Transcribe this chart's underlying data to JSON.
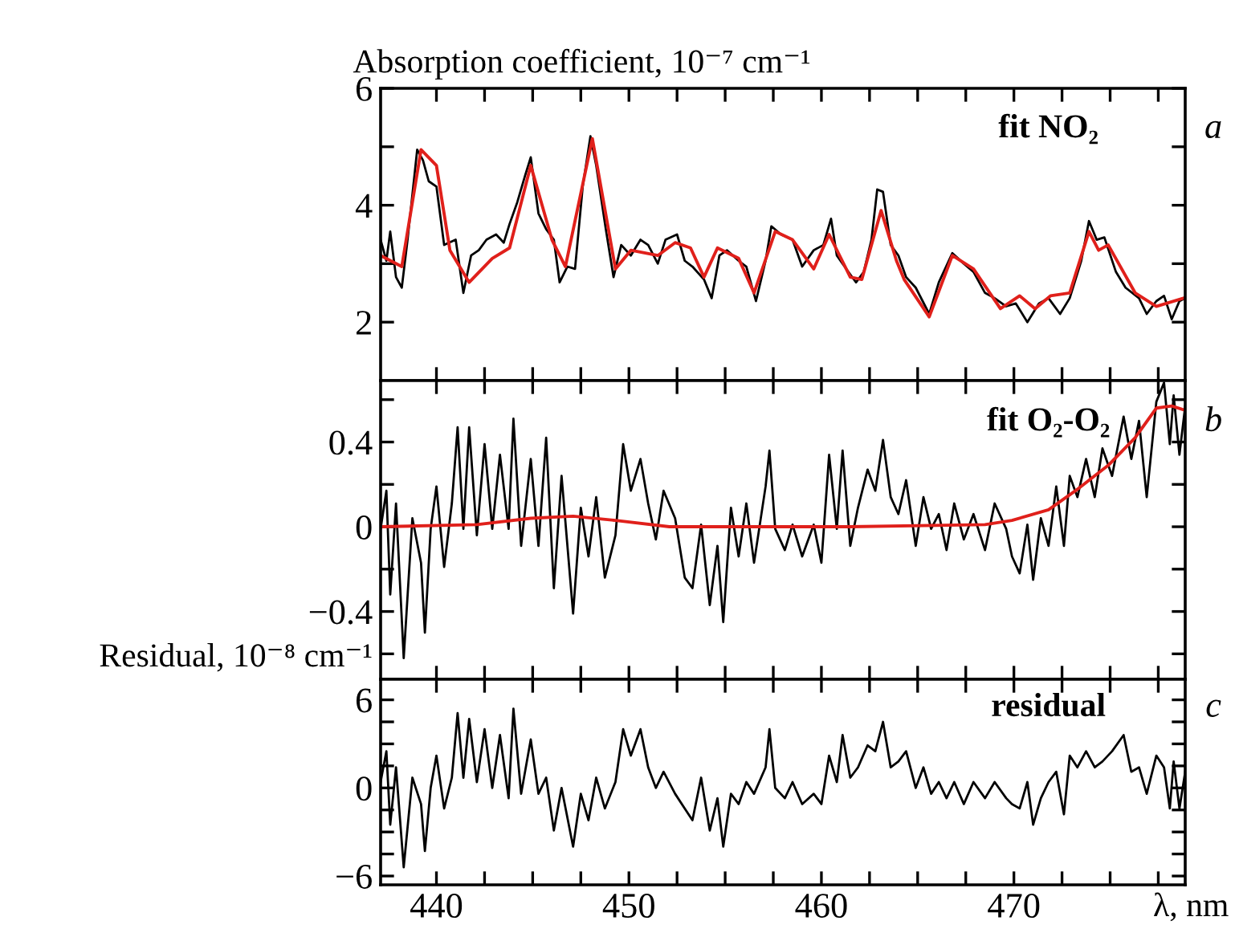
{
  "chart_data": [
    {
      "type": "line",
      "ylabel": "Absorption coefficient, 10⁻⁷ cm⁻¹",
      "annotations": [
        "fit NO₂",
        "a"
      ],
      "tick_labels": "y",
      "xlim": [
        437.1,
        478.9
      ],
      "xticks": [
        {
          "value": 440,
          "label": null
        },
        {
          "value": 442.5,
          "label": null
        },
        {
          "value": 445,
          "label": null
        },
        {
          "value": 447.5,
          "label": null
        },
        {
          "value": 450,
          "label": null
        },
        {
          "value": 452.5,
          "label": null
        },
        {
          "value": 455,
          "label": null
        },
        {
          "value": 457.5,
          "label": null
        },
        {
          "value": 460,
          "label": null
        },
        {
          "value": 462.5,
          "label": null
        },
        {
          "value": 465,
          "label": null
        },
        {
          "value": 467.5,
          "label": null
        },
        {
          "value": 470,
          "label": null
        },
        {
          "value": 472.5,
          "label": null
        },
        {
          "value": 475,
          "label": null
        },
        {
          "value": 477.5,
          "label": null
        }
      ],
      "ylim": [
        1.0,
        6.0
      ],
      "yticks": [
        2,
        {
          "value": 3,
          "label": null
        },
        4,
        {
          "value": 5,
          "label": null
        },
        6
      ],
      "series": [
        {
          "color": "#000000",
          "x": [
            437.1,
            437.4,
            437.6,
            437.9,
            438.2,
            438.5,
            439.0,
            439.3,
            439.6,
            440.0,
            440.4,
            441.0,
            441.4,
            441.8,
            442.2,
            442.6,
            443.1,
            443.5,
            443.8,
            444.2,
            444.6,
            444.9,
            445.3,
            445.7,
            446.1,
            446.4,
            446.8,
            447.2,
            447.6,
            448.0,
            448.3,
            448.8,
            449.2,
            449.6,
            450.1,
            450.6,
            451.0,
            451.5,
            451.9,
            452.5,
            452.9,
            453.3,
            453.9,
            454.3,
            454.7,
            455.1,
            455.7,
            456.1,
            456.6,
            457.1,
            457.4,
            457.9,
            458.5,
            459.0,
            459.6,
            460.1,
            460.5,
            460.8,
            461.4,
            461.8,
            462.2,
            462.6,
            462.9,
            463.2,
            463.6,
            464.0,
            464.4,
            464.9,
            465.6,
            466.1,
            466.8,
            467.4,
            467.9,
            468.5,
            469.0,
            469.6,
            470.1,
            470.7,
            471.3,
            471.8,
            472.4,
            472.9,
            473.5,
            473.9,
            474.3,
            474.7,
            475.3,
            475.8,
            476.5,
            476.9,
            477.4,
            477.8,
            478.2,
            478.6,
            478.9
          ],
          "values": [
            3.41,
            3.05,
            3.55,
            2.77,
            2.59,
            3.41,
            4.95,
            4.77,
            4.41,
            4.32,
            3.32,
            3.41,
            2.5,
            3.14,
            3.23,
            3.41,
            3.5,
            3.36,
            3.68,
            4.05,
            4.5,
            4.82,
            3.86,
            3.59,
            3.41,
            2.68,
            2.95,
            2.91,
            4.32,
            5.18,
            4.68,
            3.59,
            2.77,
            3.32,
            3.14,
            3.41,
            3.32,
            3.0,
            3.41,
            3.5,
            3.05,
            2.95,
            2.73,
            2.41,
            3.14,
            3.23,
            3.05,
            2.95,
            2.36,
            3.05,
            3.64,
            3.5,
            3.41,
            2.95,
            3.23,
            3.32,
            3.77,
            3.14,
            2.86,
            2.68,
            2.86,
            3.41,
            4.27,
            4.23,
            3.32,
            3.14,
            2.77,
            2.59,
            2.14,
            2.68,
            3.18,
            3.0,
            2.86,
            2.5,
            2.41,
            2.27,
            2.32,
            2.0,
            2.32,
            2.41,
            2.14,
            2.41,
            3.05,
            3.73,
            3.41,
            3.45,
            2.86,
            2.59,
            2.41,
            2.14,
            2.36,
            2.45,
            2.05,
            2.36,
            2.41
          ]
        },
        {
          "color": "#e0201b",
          "x": [
            437.1,
            438.2,
            439.2,
            440.0,
            440.7,
            441.7,
            442.9,
            443.8,
            444.9,
            446.0,
            446.7,
            448.1,
            449.3,
            450.1,
            451.5,
            452.4,
            453.2,
            453.9,
            454.6,
            455.7,
            456.5,
            457.6,
            458.5,
            459.6,
            460.4,
            461.5,
            462.1,
            463.1,
            463.9,
            464.3,
            465.6,
            466.8,
            467.9,
            469.3,
            470.3,
            471.1,
            471.9,
            472.9,
            473.9,
            474.4,
            474.9,
            476.3,
            477.4,
            478.8
          ],
          "values": [
            3.14,
            2.95,
            4.95,
            4.68,
            3.23,
            2.68,
            3.09,
            3.27,
            4.68,
            3.41,
            2.95,
            5.14,
            2.91,
            3.23,
            3.14,
            3.36,
            3.27,
            2.77,
            3.27,
            3.09,
            2.5,
            3.55,
            3.41,
            2.91,
            3.5,
            2.77,
            2.73,
            3.91,
            3.05,
            2.73,
            2.09,
            3.14,
            2.91,
            2.23,
            2.45,
            2.23,
            2.45,
            2.5,
            3.55,
            3.23,
            3.32,
            2.5,
            2.27,
            2.41
          ]
        }
      ]
    },
    {
      "type": "line",
      "ylabel": "Residual, 10⁻⁸ cm⁻¹",
      "annotations": [
        "fit O₂-O₂",
        "b"
      ],
      "tick_labels": "y",
      "xlim": [
        437.1,
        478.9
      ],
      "xticks": [
        {
          "value": 440,
          "label": null
        },
        {
          "value": 442.5,
          "label": null
        },
        {
          "value": 445,
          "label": null
        },
        {
          "value": 447.5,
          "label": null
        },
        {
          "value": 450,
          "label": null
        },
        {
          "value": 452.5,
          "label": null
        },
        {
          "value": 455,
          "label": null
        },
        {
          "value": 457.5,
          "label": null
        },
        {
          "value": 460,
          "label": null
        },
        {
          "value": 462.5,
          "label": null
        },
        {
          "value": 465,
          "label": null
        },
        {
          "value": 467.5,
          "label": null
        },
        {
          "value": 470,
          "label": null
        },
        {
          "value": 472.5,
          "label": null
        },
        {
          "value": 475,
          "label": null
        },
        {
          "value": 477.5,
          "label": null
        }
      ],
      "ylim": [
        -0.72,
        0.69
      ],
      "yticks": [
        {
          "value": -0.6,
          "label": null
        },
        {
          "value": -0.4,
          "label": "−0.4"
        },
        {
          "value": -0.2,
          "label": null
        },
        0,
        {
          "value": 0.2,
          "label": null
        },
        0.4,
        {
          "value": 0.6,
          "label": null
        }
      ],
      "series": [
        {
          "color": "#000000",
          "x": [
            437.1,
            437.4,
            437.6,
            437.9,
            438.3,
            438.75,
            439.2,
            439.4,
            439.7,
            440.0,
            440.4,
            440.8,
            441.1,
            441.4,
            441.7,
            442.1,
            442.5,
            442.9,
            443.3,
            443.75,
            444.0,
            444.4,
            444.9,
            445.3,
            445.7,
            446.1,
            446.5,
            447.1,
            447.5,
            447.9,
            448.3,
            448.75,
            449.3,
            449.7,
            450.1,
            450.6,
            451.0,
            451.4,
            451.8,
            452.4,
            452.9,
            453.3,
            453.75,
            454.2,
            454.6,
            454.9,
            455.3,
            455.7,
            456.1,
            456.5,
            457.1,
            457.3,
            457.6,
            458.1,
            458.5,
            459.0,
            459.6,
            460.0,
            460.4,
            460.8,
            461.1,
            461.5,
            461.9,
            462.4,
            462.8,
            463.2,
            463.6,
            464.0,
            464.4,
            464.9,
            465.3,
            465.7,
            466.1,
            466.5,
            466.9,
            467.4,
            467.9,
            468.5,
            469.0,
            469.6,
            469.9,
            470.3,
            470.7,
            471.0,
            471.4,
            471.8,
            472.2,
            472.6,
            472.9,
            473.3,
            473.75,
            474.2,
            474.6,
            475.1,
            475.7,
            476.1,
            476.5,
            476.9,
            477.4,
            477.8,
            478.1,
            478.3,
            478.6,
            478.9
          ],
          "values": [
            -0.01,
            0.17,
            -0.32,
            0.11,
            -0.62,
            0.04,
            -0.17,
            -0.5,
            -0.01,
            0.19,
            -0.19,
            0.11,
            0.47,
            -0.01,
            0.47,
            -0.04,
            0.39,
            -0.01,
            0.34,
            -0.01,
            0.51,
            -0.09,
            0.32,
            -0.09,
            0.42,
            -0.29,
            0.24,
            -0.41,
            0.09,
            -0.14,
            0.14,
            -0.24,
            -0.04,
            0.39,
            0.17,
            0.32,
            0.11,
            -0.06,
            0.17,
            0.04,
            -0.24,
            -0.29,
            0.01,
            -0.37,
            -0.09,
            -0.45,
            0.09,
            -0.14,
            0.11,
            -0.17,
            0.19,
            0.36,
            -0.01,
            -0.11,
            0.01,
            -0.14,
            0.01,
            -0.17,
            0.34,
            -0.01,
            0.36,
            -0.09,
            0.09,
            0.27,
            0.17,
            0.41,
            0.14,
            0.06,
            0.22,
            -0.09,
            0.14,
            -0.01,
            0.06,
            -0.11,
            0.11,
            -0.06,
            0.06,
            -0.11,
            0.11,
            -0.01,
            -0.14,
            -0.22,
            0.01,
            -0.25,
            0.04,
            -0.09,
            0.19,
            -0.09,
            0.24,
            0.14,
            0.32,
            0.14,
            0.37,
            0.24,
            0.52,
            0.32,
            0.5,
            0.14,
            0.59,
            0.68,
            0.39,
            0.62,
            0.34,
            0.57
          ]
        },
        {
          "color": "#e0201b",
          "x": [
            437.1,
            442.1,
            444.9,
            447.1,
            449.3,
            452.1,
            456.0,
            461.5,
            468.5,
            469.9,
            471.8,
            473.2,
            474.9,
            476.3,
            477.4,
            478.2,
            478.9
          ],
          "values": [
            0.0,
            0.01,
            0.04,
            0.05,
            0.03,
            0.0,
            0.0,
            0.0,
            0.01,
            0.03,
            0.08,
            0.17,
            0.29,
            0.42,
            0.56,
            0.57,
            0.55
          ]
        }
      ]
    },
    {
      "type": "line",
      "xlabel": "λ, nm",
      "annotations": [
        "residual",
        "c"
      ],
      "xlim": [
        437.1,
        478.9
      ],
      "xticks": [
        440,
        {
          "value": 442.5,
          "label": null
        },
        {
          "value": 445,
          "label": null
        },
        {
          "value": 447.5,
          "label": null
        },
        450,
        {
          "value": 452.5,
          "label": null
        },
        {
          "value": 455,
          "label": null
        },
        {
          "value": 457.5,
          "label": null
        },
        460,
        {
          "value": 462.5,
          "label": null
        },
        {
          "value": 465,
          "label": null
        },
        {
          "value": 467.5,
          "label": null
        },
        470,
        {
          "value": 472.5,
          "label": null
        },
        {
          "value": 475,
          "label": null
        },
        {
          "value": 477.5,
          "label": null
        }
      ],
      "ylim": [
        -6.6,
        7.4
      ],
      "yticks": [
        {
          "value": -6,
          "label": "−6"
        },
        {
          "value": -4.5,
          "label": null
        },
        {
          "value": -3,
          "label": null
        },
        {
          "value": -1.5,
          "label": null
        },
        0,
        {
          "value": 1.5,
          "label": null
        },
        {
          "value": 3,
          "label": null
        },
        {
          "value": 4.5,
          "label": null
        },
        6
      ],
      "series": [
        {
          "color": "#000000",
          "x": [
            437.1,
            437.4,
            437.6,
            437.9,
            438.3,
            438.75,
            439.2,
            439.4,
            439.7,
            440.0,
            440.4,
            440.8,
            441.1,
            441.4,
            441.7,
            442.1,
            442.5,
            442.9,
            443.3,
            443.75,
            444.0,
            444.4,
            444.9,
            445.3,
            445.7,
            446.1,
            446.5,
            447.1,
            447.5,
            447.9,
            448.3,
            448.75,
            449.3,
            449.7,
            450.1,
            450.6,
            451.0,
            451.4,
            451.8,
            452.4,
            452.9,
            453.3,
            453.75,
            454.2,
            454.6,
            454.9,
            455.3,
            455.7,
            456.1,
            456.5,
            457.1,
            457.3,
            457.6,
            458.1,
            458.5,
            459.0,
            459.6,
            460.0,
            460.4,
            460.8,
            461.1,
            461.5,
            461.9,
            462.4,
            462.8,
            463.2,
            463.6,
            464.0,
            464.4,
            464.9,
            465.3,
            465.7,
            466.1,
            466.5,
            466.9,
            467.4,
            467.9,
            468.5,
            469.0,
            469.6,
            469.9,
            470.3,
            470.7,
            471.0,
            471.4,
            471.8,
            472.2,
            472.6,
            472.9,
            473.3,
            473.75,
            474.2,
            474.6,
            475.1,
            475.7,
            476.1,
            476.5,
            476.9,
            477.4,
            477.8,
            478.1,
            478.3,
            478.6,
            478.9
          ],
          "values": [
            0.4,
            2.5,
            -2.5,
            1.4,
            -5.4,
            0.7,
            -1.1,
            -4.3,
            0,
            2.2,
            -1.4,
            0.7,
            5.1,
            0.7,
            4.7,
            0.4,
            4.0,
            0,
            3.6,
            -0.7,
            5.4,
            -0.4,
            3.3,
            -0.4,
            0.7,
            -2.9,
            0,
            -4.0,
            -0.4,
            -2.2,
            0.7,
            -1.4,
            0.4,
            4.0,
            2.2,
            4.0,
            1.4,
            0,
            1.1,
            -0.4,
            -1.4,
            -2.2,
            0.7,
            -2.9,
            -0.7,
            -4.0,
            -0.4,
            -1.1,
            0.4,
            -0.4,
            1.4,
            4.0,
            0,
            -0.7,
            0.4,
            -1.1,
            -0.4,
            -1.1,
            2.2,
            0.4,
            3.6,
            0.7,
            1.4,
            2.9,
            2.5,
            4.5,
            1.4,
            1.8,
            2.5,
            0,
            1.4,
            -0.4,
            0.4,
            -0.7,
            0.4,
            -1.1,
            0.4,
            -0.7,
            0.4,
            -0.7,
            -1.1,
            -1.4,
            0.4,
            -2.5,
            -0.7,
            0.4,
            1.1,
            -1.8,
            2.2,
            1.4,
            2.5,
            1.4,
            1.8,
            2.5,
            3.6,
            1.1,
            1.4,
            -0.4,
            2.2,
            1.4,
            -1.4,
            1.8,
            -1.4,
            1.1
          ]
        }
      ]
    }
  ]
}
